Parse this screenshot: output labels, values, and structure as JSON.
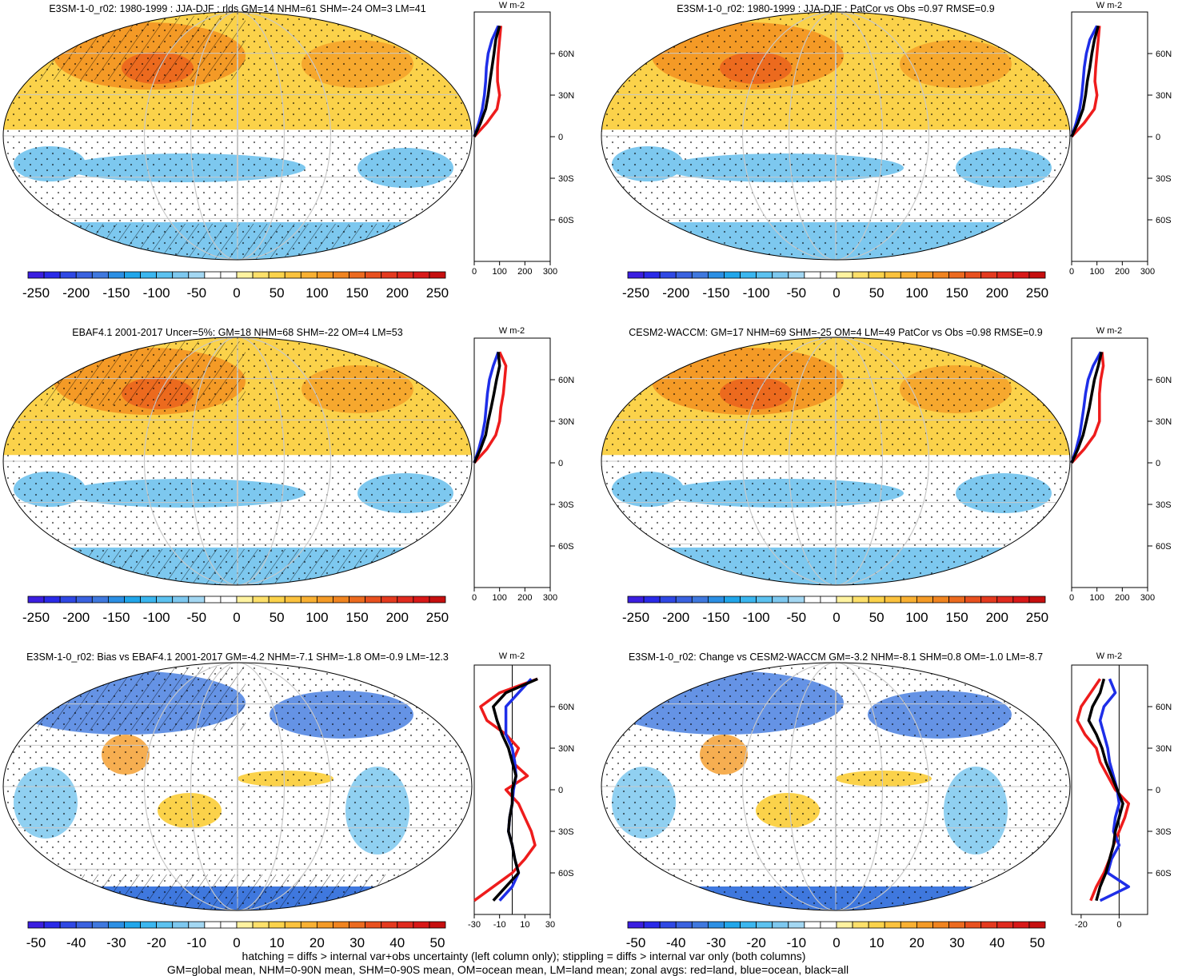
{
  "figure": {
    "footnote_line1": "hatching = diffs > internal var+obs uncertainty (left column only); stippling = diffs > internal var only (both columns)",
    "footnote_line2": "GM=global mean, NHM=0-90N mean, SHM=0-90S mean, OM=ocean mean, LM=land mean; zonal avgs: red=land, blue=ocean, black=all",
    "units_label": "W m-2"
  },
  "colors": {
    "red": "#ee1c1c",
    "blue": "#1e2ee8",
    "black": "#000000",
    "ocean_blue": "#7dc8ef",
    "warm_yellow": "#fbd24a",
    "warm_orange": "#f49a26"
  },
  "chart_data": [
    {
      "type": "map",
      "title": "E3SM-1-0_r02: 1980-1999 : JJA-DJF : rlds GM=14 NHM=61 SHM=-24 OM=3 LM=41",
      "colorbar_labels": [
        "-250",
        "-200",
        "-150",
        "-100",
        "-50",
        "0",
        "50",
        "100",
        "150",
        "200",
        "250"
      ],
      "colorbar_levels": [
        -260,
        -240,
        -220,
        -200,
        -180,
        -160,
        -140,
        -120,
        -100,
        -80,
        -60,
        -40,
        -20,
        0,
        20,
        40,
        60,
        80,
        100,
        120,
        140,
        160,
        180,
        200,
        220,
        240,
        260
      ],
      "zonal_profile": {
        "xlim": [
          0,
          300
        ],
        "xticks": [
          "0",
          "100",
          "200",
          "300"
        ],
        "yticks": [
          "60N",
          "30N",
          "0",
          "30S",
          "60S"
        ],
        "ylim": [
          -90,
          90
        ],
        "lat": [
          80,
          70,
          60,
          50,
          40,
          30,
          20,
          10,
          0
        ],
        "land": [
          105,
          100,
          95,
          92,
          92,
          100,
          90,
          50,
          0
        ],
        "ocean": [
          95,
          70,
          55,
          48,
          45,
          40,
          32,
          18,
          0
        ],
        "all": [
          100,
          85,
          78,
          70,
          62,
          55,
          45,
          25,
          0
        ]
      }
    },
    {
      "type": "map",
      "title": "E3SM-1-0_r02: 1980-1999 : JJA-DJF : PatCor vs Obs =0.97 RMSE=0.9",
      "colorbar_labels": [
        "-250",
        "-200",
        "-150",
        "-100",
        "-50",
        "0",
        "50",
        "100",
        "150",
        "200",
        "250"
      ],
      "colorbar_levels": [
        -260,
        -240,
        -220,
        -200,
        -180,
        -160,
        -140,
        -120,
        -100,
        -80,
        -60,
        -40,
        -20,
        0,
        20,
        40,
        60,
        80,
        100,
        120,
        140,
        160,
        180,
        200,
        220,
        240,
        260
      ],
      "zonal_profile": {
        "xlim": [
          0,
          300
        ],
        "xticks": [
          "0",
          "100",
          "200",
          "300"
        ],
        "yticks": [
          "60N",
          "30N",
          "0",
          "30S",
          "60S"
        ],
        "ylim": [
          -90,
          90
        ],
        "lat": [
          80,
          70,
          60,
          50,
          40,
          30,
          20,
          10,
          0
        ],
        "land": [
          110,
          105,
          100,
          95,
          92,
          100,
          90,
          50,
          0
        ],
        "ocean": [
          100,
          72,
          58,
          50,
          45,
          40,
          32,
          18,
          0
        ],
        "all": [
          105,
          90,
          80,
          72,
          62,
          55,
          45,
          25,
          0
        ]
      }
    },
    {
      "type": "map",
      "title": "EBAF4.1 2001-2017 Uncer=5%: GM=18 NHM=68 SHM=-22 OM=4 LM=53",
      "colorbar_labels": [
        "-250",
        "-200",
        "-150",
        "-100",
        "-50",
        "0",
        "50",
        "100",
        "150",
        "200",
        "250"
      ],
      "colorbar_levels": [
        -260,
        -240,
        -220,
        -200,
        -180,
        -160,
        -140,
        -120,
        -100,
        -80,
        -60,
        -40,
        -20,
        0,
        20,
        40,
        60,
        80,
        100,
        120,
        140,
        160,
        180,
        200,
        220,
        240,
        260
      ],
      "zonal_profile": {
        "xlim": [
          0,
          300
        ],
        "xticks": [
          "0",
          "100",
          "200",
          "300"
        ],
        "yticks": [
          "60N",
          "30N",
          "0",
          "30S",
          "60S"
        ],
        "ylim": [
          -90,
          90
        ],
        "lat": [
          80,
          70,
          60,
          50,
          40,
          30,
          20,
          10,
          0
        ],
        "land": [
          100,
          125,
          120,
          115,
          105,
          100,
          85,
          50,
          0
        ],
        "ocean": [
          95,
          75,
          60,
          52,
          47,
          42,
          32,
          18,
          0
        ],
        "all": [
          95,
          100,
          88,
          78,
          67,
          55,
          45,
          25,
          0
        ]
      }
    },
    {
      "type": "map",
      "title": "CESM2-WACCM: GM=17 NHM=69 SHM=-25 OM=4 LM=49 PatCor vs Obs =0.98 RMSE=0.9",
      "colorbar_labels": [
        "-250",
        "-200",
        "-150",
        "-100",
        "-50",
        "0",
        "50",
        "100",
        "150",
        "200",
        "250"
      ],
      "colorbar_levels": [
        -260,
        -240,
        -220,
        -200,
        -180,
        -160,
        -140,
        -120,
        -100,
        -80,
        -60,
        -40,
        -20,
        0,
        20,
        40,
        60,
        80,
        100,
        120,
        140,
        160,
        180,
        200,
        220,
        240,
        260
      ],
      "zonal_profile": {
        "xlim": [
          0,
          300
        ],
        "xticks": [
          "0",
          "100",
          "200",
          "300"
        ],
        "yticks": [
          "60N",
          "30N",
          "0",
          "30S",
          "60S"
        ],
        "ylim": [
          -90,
          90
        ],
        "lat": [
          80,
          70,
          60,
          50,
          40,
          30,
          20,
          10,
          0
        ],
        "land": [
          120,
          125,
          115,
          110,
          110,
          110,
          90,
          50,
          0
        ],
        "ocean": [
          115,
          85,
          65,
          55,
          48,
          40,
          32,
          18,
          0
        ],
        "all": [
          118,
          105,
          90,
          80,
          70,
          58,
          45,
          25,
          0
        ]
      }
    },
    {
      "type": "map",
      "title": "E3SM-1-0_r02: Bias vs EBAF4.1 2001-2017 GM=-4.2 NHM=-7.1 SHM=-1.8 OM=-0.9 LM=-12.3",
      "colorbar_labels": [
        "-50",
        "-40",
        "-30",
        "-20",
        "-10",
        "0",
        "10",
        "20",
        "30",
        "40",
        "50"
      ],
      "colorbar_levels": [
        -52,
        -48,
        -44,
        -40,
        -36,
        -32,
        -28,
        -24,
        -20,
        -16,
        -12,
        -8,
        -4,
        0,
        4,
        8,
        12,
        16,
        20,
        24,
        28,
        32,
        36,
        40,
        44,
        48,
        52
      ],
      "zonal_profile": {
        "xlim": [
          -30,
          30
        ],
        "xticks": [
          "-30",
          "-10",
          "10",
          "30"
        ],
        "yticks": [
          "60N",
          "30N",
          "0",
          "30S",
          "60S"
        ],
        "ylim": [
          -90,
          90
        ],
        "lat": [
          80,
          70,
          60,
          50,
          40,
          30,
          20,
          10,
          0,
          -10,
          -20,
          -30,
          -40,
          -50,
          -60,
          -70,
          -80
        ],
        "land": [
          20,
          -10,
          -25,
          -20,
          -5,
          5,
          0,
          12,
          -5,
          5,
          10,
          15,
          18,
          10,
          0,
          -15,
          -30
        ],
        "ocean": [
          15,
          5,
          -5,
          -5,
          -5,
          0,
          2,
          3,
          1,
          0,
          -2,
          -3,
          0,
          2,
          5,
          0,
          -10
        ],
        "all": [
          20,
          -5,
          -15,
          -12,
          -8,
          -3,
          0,
          3,
          0,
          0,
          -2,
          -3,
          0,
          2,
          5,
          -5,
          -15
        ]
      }
    },
    {
      "type": "map",
      "title": "E3SM-1-0_r02: Change vs CESM2-WACCM GM=-3.2 NHM=-8.1 SHM=0.8 OM=-1.0 LM=-8.7",
      "colorbar_labels": [
        "-50",
        "-40",
        "-30",
        "-20",
        "-10",
        "0",
        "10",
        "20",
        "30",
        "40",
        "50"
      ],
      "colorbar_levels": [
        -52,
        -48,
        -44,
        -40,
        -36,
        -32,
        -28,
        -24,
        -20,
        -16,
        -12,
        -8,
        -4,
        0,
        4,
        8,
        12,
        16,
        20,
        24,
        28,
        32,
        36,
        40,
        44,
        48,
        52
      ],
      "zonal_profile": {
        "xlim": [
          -25,
          15
        ],
        "xticks": [
          "-20",
          "0"
        ],
        "yticks": [
          "60N",
          "30N",
          "0",
          "30S",
          "60S"
        ],
        "ylim": [
          -90,
          90
        ],
        "lat": [
          80,
          70,
          60,
          50,
          40,
          30,
          20,
          10,
          0,
          -10,
          -20,
          -30,
          -40,
          -50,
          -60,
          -70,
          -80
        ],
        "land": [
          -10,
          -15,
          -20,
          -22,
          -18,
          -12,
          -10,
          -6,
          -2,
          5,
          3,
          0,
          -3,
          -5,
          -8,
          -12,
          -15
        ],
        "ocean": [
          -5,
          -2,
          -8,
          -10,
          -8,
          -6,
          -5,
          -3,
          -1,
          0,
          -2,
          -3,
          0,
          -4,
          -6,
          5,
          -10
        ],
        "all": [
          -8,
          -10,
          -14,
          -16,
          -12,
          -9,
          -7,
          -4,
          -1,
          2,
          0,
          -2,
          -3,
          -5,
          -7,
          -10,
          -12
        ]
      }
    }
  ]
}
